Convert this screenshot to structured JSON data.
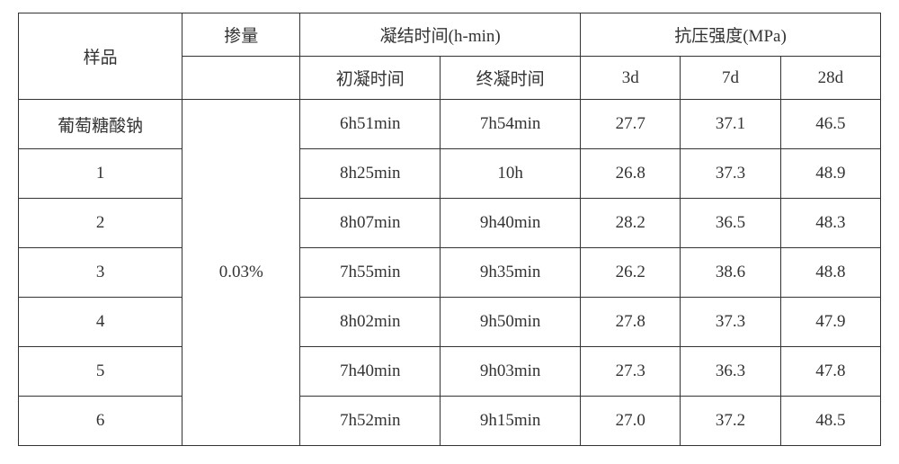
{
  "table": {
    "headers": {
      "sample": "样品",
      "dosage": "掺量",
      "setting_time": "凝结时间(h-min)",
      "compressive_strength": "抗压强度(MPa)",
      "initial_time": "初凝时间",
      "final_time": "终凝时间",
      "day3": "3d",
      "day7": "7d",
      "day28": "28d"
    },
    "dosage_value": "0.03%",
    "rows": [
      {
        "sample": "葡萄糖酸钠",
        "initial": "6h51min",
        "final": "7h54min",
        "d3": "27.7",
        "d7": "37.1",
        "d28": "46.5"
      },
      {
        "sample": "1",
        "initial": "8h25min",
        "final": "10h",
        "d3": "26.8",
        "d7": "37.3",
        "d28": "48.9"
      },
      {
        "sample": "2",
        "initial": "8h07min",
        "final": "9h40min",
        "d3": "28.2",
        "d7": "36.5",
        "d28": "48.3"
      },
      {
        "sample": "3",
        "initial": "7h55min",
        "final": "9h35min",
        "d3": "26.2",
        "d7": "38.6",
        "d28": "48.8"
      },
      {
        "sample": "4",
        "initial": "8h02min",
        "final": "9h50min",
        "d3": "27.8",
        "d7": "37.3",
        "d28": "47.9"
      },
      {
        "sample": "5",
        "initial": "7h40min",
        "final": "9h03min",
        "d3": "27.3",
        "d7": "36.3",
        "d28": "47.8"
      },
      {
        "sample": "6",
        "initial": "7h52min",
        "final": "9h15min",
        "d3": "27.0",
        "d7": "37.2",
        "d28": "48.5"
      }
    ],
    "border_color": "#333333",
    "text_color": "#333333",
    "background_color": "#ffffff",
    "font_size_pt": 14
  }
}
